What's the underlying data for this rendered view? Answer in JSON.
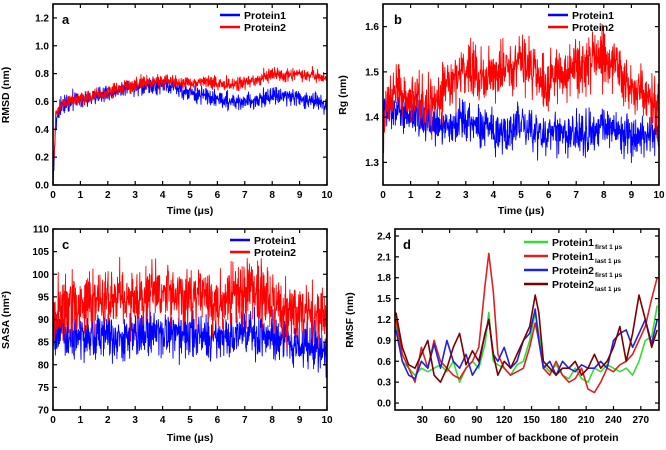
{
  "chart_data": [
    {
      "id": "a",
      "type": "line",
      "panel_label": "a",
      "xlabel": "Time (μs)",
      "ylabel": "RMSD (nm)",
      "xlim": [
        0,
        10
      ],
      "ylim": [
        0,
        1.3
      ],
      "xticks": [
        0,
        1,
        2,
        3,
        4,
        5,
        6,
        7,
        8,
        9,
        10
      ],
      "yticks": [
        0.0,
        0.2,
        0.4,
        0.6,
        0.8,
        1.0,
        1.2
      ],
      "ytick_labels": [
        "0.0",
        "0.2",
        "0.4",
        "0.6",
        "0.8",
        "1.0",
        "1.2"
      ],
      "legend_position": "top-right",
      "series": [
        {
          "name": "Protein1",
          "color": "#0000ff",
          "noise": 0.03,
          "x": [
            0,
            0.1,
            0.3,
            0.6,
            1.0,
            1.5,
            2.0,
            2.5,
            3.0,
            3.5,
            4.0,
            4.5,
            5.0,
            5.5,
            6.0,
            6.5,
            7.0,
            7.5,
            8.0,
            8.5,
            9.0,
            9.5,
            10.0
          ],
          "values": [
            0.02,
            0.46,
            0.56,
            0.6,
            0.62,
            0.64,
            0.66,
            0.68,
            0.7,
            0.7,
            0.72,
            0.7,
            0.66,
            0.64,
            0.62,
            0.6,
            0.6,
            0.61,
            0.65,
            0.64,
            0.62,
            0.6,
            0.58
          ]
        },
        {
          "name": "Protein2",
          "color": "#ff0000",
          "noise": 0.025,
          "x": [
            0,
            0.1,
            0.3,
            0.6,
            1.0,
            1.5,
            2.0,
            2.5,
            3.0,
            3.5,
            4.0,
            4.5,
            5.0,
            5.5,
            6.0,
            6.5,
            7.0,
            7.5,
            8.0,
            8.5,
            9.0,
            9.5,
            10.0
          ],
          "values": [
            0.02,
            0.5,
            0.58,
            0.6,
            0.62,
            0.64,
            0.66,
            0.7,
            0.72,
            0.74,
            0.75,
            0.74,
            0.73,
            0.74,
            0.73,
            0.72,
            0.74,
            0.75,
            0.8,
            0.78,
            0.8,
            0.79,
            0.76
          ]
        }
      ]
    },
    {
      "id": "b",
      "type": "line",
      "panel_label": "b",
      "xlabel": "Time (μs)",
      "ylabel": "Rg (nm)",
      "xlim": [
        0,
        10
      ],
      "ylim": [
        1.25,
        1.65
      ],
      "xticks": [
        0,
        1,
        2,
        3,
        4,
        5,
        6,
        7,
        8,
        9,
        10
      ],
      "yticks": [
        1.3,
        1.4,
        1.5,
        1.6
      ],
      "ytick_labels": [
        "1.3",
        "1.4",
        "1.5",
        "1.6"
      ],
      "legend_position": "top-right",
      "series": [
        {
          "name": "Protein1",
          "color": "#0000ff",
          "noise": 0.022,
          "x": [
            0,
            0.2,
            0.5,
            1.0,
            1.5,
            2.0,
            2.5,
            3.0,
            3.5,
            4.0,
            4.5,
            5.0,
            5.5,
            6.0,
            6.5,
            7.0,
            7.5,
            8.0,
            8.5,
            9.0,
            9.5,
            10.0
          ],
          "values": [
            1.4,
            1.43,
            1.42,
            1.41,
            1.4,
            1.38,
            1.38,
            1.4,
            1.38,
            1.37,
            1.36,
            1.39,
            1.37,
            1.36,
            1.36,
            1.37,
            1.37,
            1.38,
            1.37,
            1.36,
            1.36,
            1.36
          ]
        },
        {
          "name": "Protein2",
          "color": "#ff0000",
          "noise": 0.03,
          "x": [
            0,
            0.2,
            0.5,
            1.0,
            1.5,
            2.0,
            2.5,
            3.0,
            3.5,
            4.0,
            4.5,
            5.0,
            5.5,
            6.0,
            6.5,
            7.0,
            7.5,
            8.0,
            8.5,
            9.0,
            9.5,
            10.0
          ],
          "values": [
            1.38,
            1.44,
            1.46,
            1.45,
            1.42,
            1.45,
            1.48,
            1.5,
            1.5,
            1.49,
            1.52,
            1.53,
            1.5,
            1.48,
            1.5,
            1.51,
            1.53,
            1.54,
            1.5,
            1.47,
            1.44,
            1.42
          ]
        }
      ]
    },
    {
      "id": "c",
      "type": "line",
      "panel_label": "c",
      "xlabel": "Time (μs)",
      "ylabel": "SASA (nm²)",
      "xlim": [
        0,
        10
      ],
      "ylim": [
        70,
        110
      ],
      "xticks": [
        0,
        1,
        2,
        3,
        4,
        5,
        6,
        7,
        8,
        9,
        10
      ],
      "yticks": [
        70,
        75,
        80,
        85,
        90,
        95,
        100,
        105,
        110
      ],
      "ytick_labels": [
        "70",
        "75",
        "80",
        "85",
        "90",
        "95",
        "100",
        "105",
        "110"
      ],
      "legend_position": "top-right",
      "series": [
        {
          "name": "Protein1",
          "color": "#0000ff",
          "noise": 2.5,
          "x": [
            0,
            0.5,
            1.0,
            1.5,
            2.0,
            2.5,
            3.0,
            3.5,
            4.0,
            4.5,
            5.0,
            5.5,
            6.0,
            6.5,
            7.0,
            7.5,
            8.0,
            8.5,
            9.0,
            9.5,
            10.0
          ],
          "values": [
            87,
            86,
            86,
            86,
            87,
            86,
            87,
            87,
            86,
            87,
            86,
            86,
            86,
            86,
            87,
            87,
            86,
            85,
            84,
            84,
            83
          ]
        },
        {
          "name": "Protein2",
          "color": "#ff0000",
          "noise": 3.5,
          "x": [
            0,
            0.5,
            1.0,
            1.5,
            2.0,
            2.5,
            3.0,
            3.5,
            4.0,
            4.5,
            5.0,
            5.5,
            6.0,
            6.5,
            7.0,
            7.5,
            8.0,
            8.5,
            9.0,
            9.5,
            10.0
          ],
          "values": [
            91,
            93,
            93,
            94,
            94,
            95,
            95,
            96,
            95,
            96,
            95,
            95,
            94,
            95,
            96,
            97,
            94,
            91,
            91,
            91,
            90
          ]
        }
      ]
    },
    {
      "id": "d",
      "type": "line",
      "panel_label": "d",
      "xlabel": "Bead number of backbone of protein",
      "ylabel": "RMSF (nm)",
      "xlim": [
        0,
        290
      ],
      "ylim": [
        -0.1,
        2.5
      ],
      "xticks": [
        30,
        60,
        90,
        120,
        150,
        180,
        210,
        240,
        270
      ],
      "yticks": [
        0.0,
        0.3,
        0.6,
        0.9,
        1.2,
        1.5,
        1.8,
        2.1,
        2.4
      ],
      "ytick_labels": [
        "0.0",
        "0.3",
        "0.6",
        "0.9",
        "1.2",
        "1.5",
        "1.8",
        "2.1",
        "2.4"
      ],
      "legend_position": "top-right",
      "series": [
        {
          "name": "Protein1",
          "subscript": "first 1 μs",
          "color": "#33dd33",
          "x": [
            1,
            8,
            15,
            22,
            29,
            36,
            43,
            50,
            57,
            64,
            71,
            78,
            85,
            92,
            99,
            103,
            108,
            113,
            120,
            127,
            134,
            141,
            148,
            154,
            158,
            163,
            170,
            177,
            184,
            191,
            198,
            205,
            212,
            219,
            226,
            233,
            240,
            247,
            254,
            261,
            268,
            275,
            282,
            288
          ],
          "values": [
            1.1,
            0.6,
            0.5,
            0.4,
            0.5,
            0.45,
            0.5,
            0.55,
            0.45,
            0.6,
            0.3,
            0.5,
            0.6,
            0.5,
            0.85,
            1.3,
            0.6,
            0.55,
            0.5,
            0.4,
            0.55,
            0.6,
            0.9,
            1.3,
            1.0,
            0.55,
            0.45,
            0.55,
            0.4,
            0.35,
            0.5,
            0.35,
            0.3,
            0.5,
            0.45,
            0.55,
            0.5,
            0.45,
            0.5,
            0.4,
            0.6,
            0.9,
            0.95,
            1.4
          ]
        },
        {
          "name": "Protein1",
          "subscript": "last 1 μs",
          "color": "#dd2222",
          "x": [
            1,
            8,
            15,
            22,
            29,
            36,
            43,
            50,
            57,
            64,
            71,
            78,
            85,
            92,
            99,
            103,
            108,
            113,
            120,
            127,
            134,
            141,
            148,
            154,
            158,
            163,
            170,
            177,
            184,
            191,
            198,
            205,
            212,
            219,
            226,
            233,
            240,
            247,
            254,
            261,
            268,
            275,
            282,
            288
          ],
          "values": [
            1.2,
            0.7,
            0.5,
            0.3,
            0.8,
            0.5,
            0.9,
            0.6,
            0.5,
            0.4,
            0.35,
            0.5,
            0.6,
            0.8,
            1.7,
            2.15,
            1.6,
            0.7,
            0.5,
            0.4,
            0.45,
            0.5,
            0.8,
            1.15,
            0.9,
            0.5,
            0.4,
            0.6,
            0.4,
            0.3,
            0.35,
            0.5,
            0.2,
            0.15,
            0.3,
            0.5,
            0.45,
            0.55,
            0.6,
            0.7,
            0.9,
            1.1,
            1.5,
            1.8
          ]
        },
        {
          "name": "Protein2",
          "subscript": "first 1 μs",
          "color": "#2222dd",
          "x": [
            1,
            8,
            15,
            22,
            29,
            36,
            43,
            50,
            57,
            64,
            71,
            78,
            85,
            92,
            99,
            103,
            108,
            113,
            120,
            127,
            134,
            141,
            148,
            154,
            158,
            163,
            170,
            177,
            184,
            191,
            198,
            205,
            212,
            219,
            226,
            233,
            240,
            247,
            254,
            261,
            268,
            275,
            282,
            288
          ],
          "values": [
            1.05,
            0.6,
            0.4,
            0.35,
            0.6,
            0.5,
            0.85,
            0.5,
            0.9,
            0.6,
            0.5,
            0.7,
            0.4,
            0.55,
            1.0,
            1.2,
            0.7,
            0.6,
            0.8,
            0.5,
            0.6,
            0.9,
            1.0,
            1.35,
            0.9,
            0.5,
            0.6,
            0.4,
            0.6,
            0.5,
            0.45,
            0.55,
            0.5,
            0.5,
            0.6,
            0.5,
            0.9,
            1.0,
            1.05,
            0.8,
            1.0,
            1.2,
            0.85,
            1.2
          ]
        },
        {
          "name": "Protein2",
          "subscript": "last 1 μs",
          "color": "#7a0000",
          "x": [
            1,
            8,
            15,
            22,
            29,
            36,
            43,
            50,
            57,
            64,
            71,
            78,
            85,
            92,
            99,
            103,
            108,
            113,
            120,
            127,
            134,
            141,
            148,
            154,
            158,
            163,
            170,
            177,
            184,
            191,
            198,
            205,
            212,
            219,
            226,
            233,
            240,
            247,
            254,
            261,
            268,
            275,
            282,
            288
          ],
          "values": [
            1.3,
            0.8,
            0.55,
            0.5,
            0.7,
            0.9,
            0.4,
            0.3,
            0.5,
            0.8,
            1.0,
            0.55,
            0.75,
            0.6,
            1.0,
            1.2,
            0.7,
            0.4,
            0.6,
            0.5,
            0.7,
            0.9,
            1.1,
            1.55,
            1.3,
            0.6,
            0.5,
            0.4,
            0.5,
            0.5,
            0.6,
            0.4,
            0.5,
            0.7,
            0.5,
            0.6,
            0.8,
            1.1,
            0.6,
            1.0,
            1.55,
            1.2,
            0.8,
            1.05
          ]
        }
      ]
    }
  ]
}
